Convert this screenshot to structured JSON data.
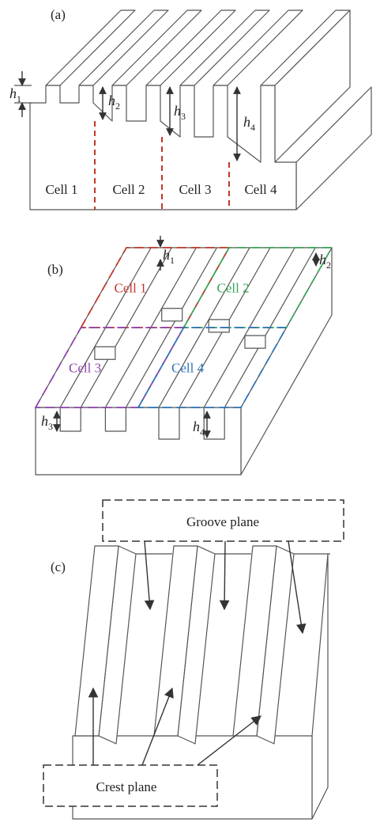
{
  "panels": [
    {
      "label": "(a)",
      "cells": [
        "Cell 1",
        "Cell 2",
        "Cell 3",
        "Cell 4"
      ],
      "heights": [
        {
          "var": "h",
          "sub": "1"
        },
        {
          "var": "h",
          "sub": "2"
        },
        {
          "var": "h",
          "sub": "3"
        },
        {
          "var": "h",
          "sub": "4"
        }
      ]
    },
    {
      "label": "(b)",
      "cells": [
        "Cell 1",
        "Cell 2",
        "Cell 3",
        "Cell 4"
      ],
      "heights": [
        {
          "var": "h",
          "sub": "1"
        },
        {
          "var": "h",
          "sub": "2"
        },
        {
          "var": "h",
          "sub": "3"
        },
        {
          "var": "h",
          "sub": "4"
        }
      ]
    },
    {
      "label": "(c)",
      "groove": "Groove plane",
      "crest": "Crest plane"
    }
  ]
}
